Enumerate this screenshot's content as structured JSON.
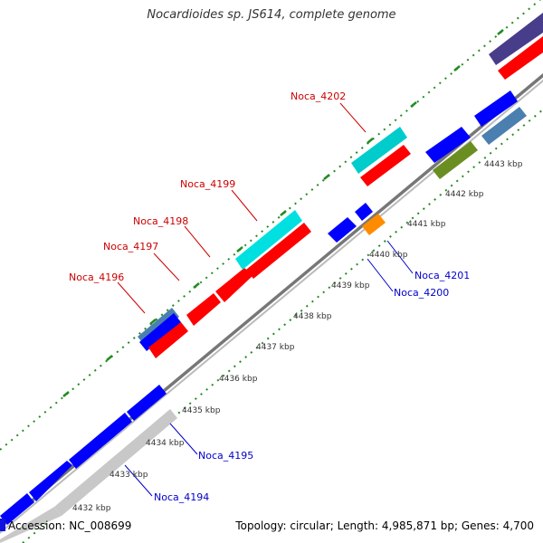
{
  "title": "Nocardioides sp. JS614, complete genome",
  "footer": {
    "accession": "Accession: NC_008699",
    "topology": "Topology: circular; Length: 4,985,871 bp; Genes: 4,700"
  },
  "colors": {
    "backbone": "#888888",
    "tick": "#228B22",
    "forward_gene": "#ff0000",
    "reverse_gene": "#0000ff",
    "forward_label": "#cc0000",
    "reverse_label": "#0000cc",
    "cyan_feature": "#00cccc",
    "steel_feature": "#4a7fb0",
    "olive_feature": "#6b8e23",
    "orange_feature": "#ff8c00",
    "navy_feature": "#483d8b",
    "grey_feature": "#c0c0c0"
  },
  "scale_labels": [
    "4432 kbp",
    "4433 kbp",
    "4434 kbp",
    "4435 kbp",
    "4436 kbp",
    "4437 kbp",
    "4438 kbp",
    "4439 kbp",
    "4440 kbp",
    "4441 kbp",
    "4442 kbp",
    "4443 kbp"
  ],
  "gene_labels": {
    "forward": [
      "Noca_4196",
      "Noca_4197",
      "Noca_4198",
      "Noca_4199",
      "Noca_4202"
    ],
    "reverse": [
      "Noca_4194",
      "Noca_4195",
      "Noca_4200",
      "Noca_4201"
    ]
  }
}
